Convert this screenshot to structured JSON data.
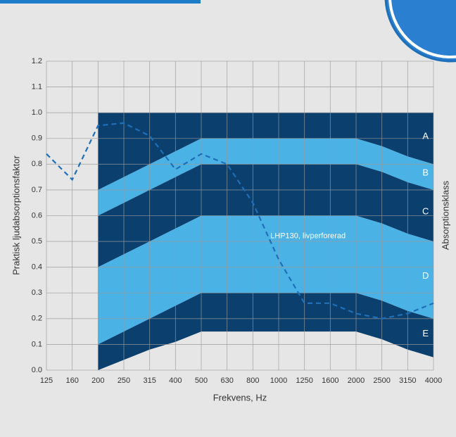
{
  "chart_data": {
    "type": "line",
    "x_label": "Frekvens, Hz",
    "y_label": "Praktisk ljudabsorptionsfaktor",
    "y2_label": "Absorptionsklass",
    "categories": [
      "125",
      "160",
      "200",
      "250",
      "315",
      "400",
      "500",
      "630",
      "800",
      "1000",
      "1250",
      "1600",
      "2000",
      "2500",
      "3150",
      "4000"
    ],
    "ylim": [
      0,
      1.2
    ],
    "yticks": [
      {
        "value": 0,
        "label": "0.0"
      },
      0.1,
      0.2,
      0.3,
      0.4,
      0.5,
      0.6,
      0.7,
      0.8,
      0.9,
      {
        "value": 1,
        "label": "1.0"
      },
      1.1,
      1.2
    ],
    "grid": true,
    "series": [
      {
        "name": "LHP130, livperforerad",
        "color": "#1e6fb8",
        "dashed": true,
        "values": [
          0.84,
          0.74,
          0.95,
          0.96,
          0.91,
          0.78,
          0.84,
          0.8,
          0.65,
          0.43,
          0.26,
          0.26,
          0.22,
          0.2,
          0.22,
          0.26
        ]
      }
    ],
    "bands": [
      {
        "name": "A",
        "color": "#0b3f6e",
        "upper": [
          null,
          null,
          1,
          1,
          1,
          1,
          1,
          1,
          1,
          1,
          1,
          1,
          1,
          1,
          1,
          1
        ],
        "lower": [
          null,
          null,
          0.7,
          0.75,
          0.8,
          0.85,
          0.9,
          0.9,
          0.9,
          0.9,
          0.9,
          0.9,
          0.9,
          0.87,
          0.83,
          0.8
        ]
      },
      {
        "name": "B",
        "color": "#4bb2e6",
        "upper": [
          null,
          null,
          0.7,
          0.75,
          0.8,
          0.85,
          0.9,
          0.9,
          0.9,
          0.9,
          0.9,
          0.9,
          0.9,
          0.87,
          0.83,
          0.8
        ],
        "lower": [
          null,
          null,
          0.6,
          0.65,
          0.7,
          0.75,
          0.8,
          0.8,
          0.8,
          0.8,
          0.8,
          0.8,
          0.8,
          0.77,
          0.73,
          0.7
        ]
      },
      {
        "name": "C",
        "color": "#0b3f6e",
        "upper": [
          null,
          null,
          0.6,
          0.65,
          0.7,
          0.75,
          0.8,
          0.8,
          0.8,
          0.8,
          0.8,
          0.8,
          0.8,
          0.77,
          0.73,
          0.7
        ],
        "lower": [
          null,
          null,
          0.4,
          0.45,
          0.5,
          0.55,
          0.6,
          0.6,
          0.6,
          0.6,
          0.6,
          0.6,
          0.6,
          0.57,
          0.53,
          0.5
        ]
      },
      {
        "name": "D",
        "color": "#4bb2e6",
        "upper": [
          null,
          null,
          0.4,
          0.45,
          0.5,
          0.55,
          0.6,
          0.6,
          0.6,
          0.6,
          0.6,
          0.6,
          0.6,
          0.57,
          0.53,
          0.5
        ],
        "lower": [
          null,
          null,
          0.1,
          0.15,
          0.2,
          0.25,
          0.3,
          0.3,
          0.3,
          0.3,
          0.3,
          0.3,
          0.3,
          0.27,
          0.23,
          0.2
        ]
      },
      {
        "name": "E",
        "color": "#0b3f6e",
        "upper": [
          null,
          null,
          0.1,
          0.15,
          0.2,
          0.25,
          0.3,
          0.3,
          0.3,
          0.3,
          0.3,
          0.3,
          0.3,
          0.27,
          0.23,
          0.2
        ],
        "lower": [
          null,
          null,
          0,
          0.04,
          0.08,
          0.11,
          0.15,
          0.15,
          0.15,
          0.15,
          0.15,
          0.15,
          0.15,
          0.12,
          0.08,
          0.05
        ]
      }
    ]
  }
}
